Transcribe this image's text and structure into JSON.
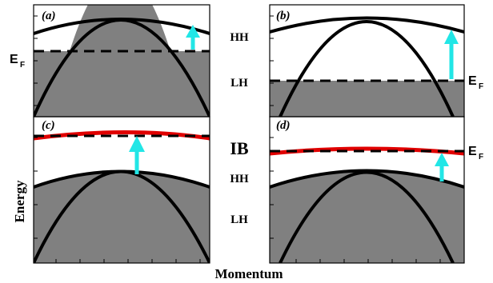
{
  "panels": [
    {
      "id": "a",
      "label": "(a)"
    },
    {
      "id": "b",
      "label": "(b)"
    },
    {
      "id": "c",
      "label": "(c)"
    },
    {
      "id": "d",
      "label": "(d)"
    }
  ],
  "band_labels": {
    "hh_top": "HH",
    "lh_top": "LH",
    "ib": "IB",
    "hh_bottom": "HH",
    "lh_bottom": "LH"
  },
  "fermi_level": {
    "symbol": "E",
    "subscript": "F"
  },
  "axes": {
    "x_label": "Momentum",
    "y_label": "Energy"
  },
  "colors": {
    "filled_states": "#808080",
    "band_line": "#000000",
    "impurity_band": "#e00000",
    "transition_arrow": "#22e6e6"
  }
}
